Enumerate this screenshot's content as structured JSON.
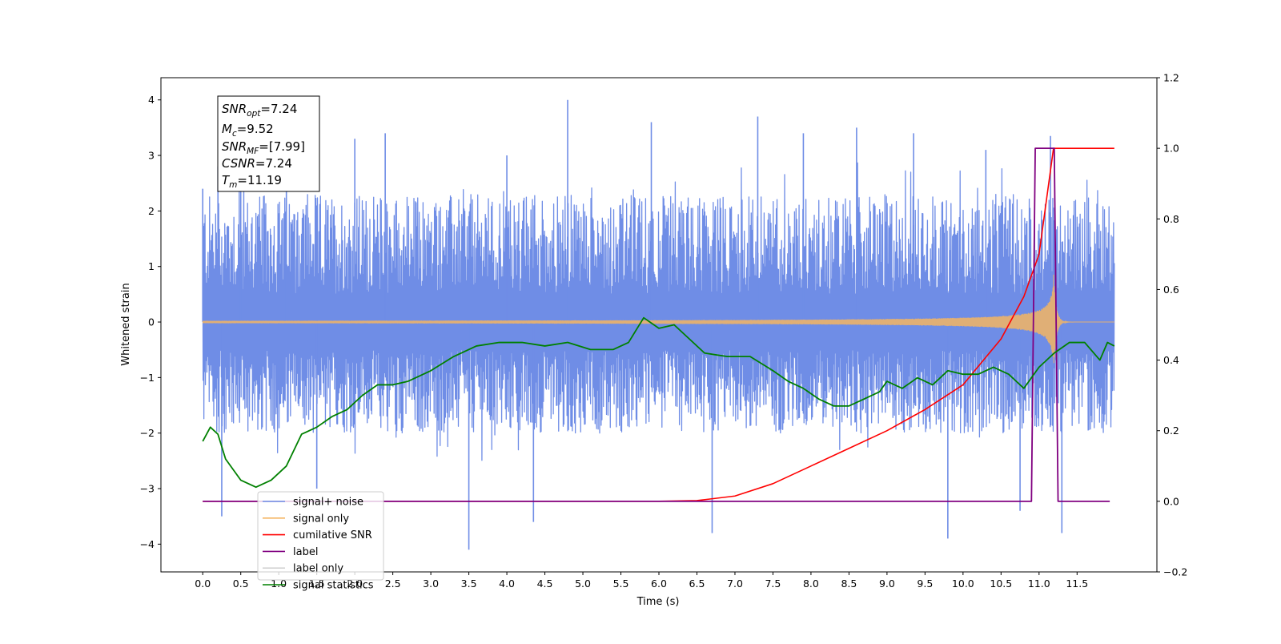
{
  "chart_data": {
    "type": "line",
    "xlabel": "Time (s)",
    "ylabel": "Whitened strain",
    "xlim": [
      -0.55,
      12.55
    ],
    "ylim_left": [
      -4.5,
      4.4
    ],
    "ylim_right": [
      -0.2,
      1.2
    ],
    "x_ticks": [
      "0.0",
      "0.5",
      "1.0",
      "1.5",
      "2.0",
      "2.5",
      "3.0",
      "3.5",
      "4.0",
      "4.5",
      "5.0",
      "5.5",
      "6.0",
      "6.5",
      "7.0",
      "7.5",
      "8.0",
      "8.5",
      "9.0",
      "9.5",
      "10.0",
      "10.5",
      "11.0",
      "11.5"
    ],
    "y_ticks_left": [
      "4",
      "3",
      "2",
      "1",
      "0",
      "−1",
      "−2",
      "−3",
      "−4"
    ],
    "y_ticks_right": [
      "1.2",
      "1.0",
      "0.8",
      "0.6",
      "0.4",
      "0.2",
      "0.0",
      "−0.2"
    ],
    "stats_box": [
      {
        "base": "SNR",
        "sub": "opt",
        "value": "=7.24"
      },
      {
        "base": "M",
        "sub": "c",
        "value": "=9.52"
      },
      {
        "base": "SNR",
        "sub": "MF",
        "value": "=[7.99]"
      },
      {
        "base": "CSNR",
        "sub": "",
        "value": "=7.24"
      },
      {
        "base": "T",
        "sub": "m",
        "value": "=11.19"
      }
    ],
    "legend": [
      {
        "label": "signal+ noise",
        "color": "#6f8de6"
      },
      {
        "label": "signal only",
        "color": "#f5b562"
      },
      {
        "label": "cumilative SNR",
        "color": "#ff0000"
      },
      {
        "label": "label",
        "color": "#800080"
      },
      {
        "label": "label only",
        "color": "#d3d3d3"
      },
      {
        "label": "signal statistics",
        "color": "#008000"
      }
    ],
    "series": [
      {
        "name": "signal+ noise",
        "axis": "left",
        "style": "dense noise band",
        "x_range": [
          0.0,
          11.99
        ],
        "typical_range": [
          -2.0,
          2.3
        ],
        "spike_x": [
          0.0,
          0.2,
          0.25,
          0.5,
          1.1,
          1.5,
          2.0,
          2.4,
          3.5,
          4.0,
          4.35,
          4.8,
          5.9,
          6.7,
          7.3,
          7.9,
          8.6,
          9.35,
          9.8,
          10.3,
          10.75,
          11.15,
          11.3
        ],
        "spike_val": [
          2.4,
          2.8,
          -3.5,
          2.9,
          3.1,
          -3.0,
          3.3,
          3.4,
          -4.1,
          3.0,
          -3.6,
          4.0,
          3.6,
          -3.8,
          3.7,
          3.4,
          3.5,
          3.4,
          -3.9,
          3.1,
          -3.4,
          3.35,
          -3.8
        ]
      },
      {
        "name": "signal only",
        "axis": "left",
        "style": "chirp",
        "x_range": [
          0.0,
          11.99
        ],
        "merger_time": 11.19,
        "peak_amplitude": 0.95
      },
      {
        "name": "cumilative SNR",
        "axis": "right",
        "x": [
          0.0,
          6.0,
          6.5,
          7.0,
          7.5,
          8.0,
          8.5,
          9.0,
          9.5,
          10.0,
          10.5,
          10.8,
          11.0,
          11.19,
          11.2,
          11.99
        ],
        "values": [
          0.0,
          0.0,
          0.002,
          0.015,
          0.05,
          0.1,
          0.15,
          0.2,
          0.26,
          0.33,
          0.46,
          0.58,
          0.7,
          1.0,
          1.0,
          1.0
        ]
      },
      {
        "name": "label",
        "axis": "right",
        "x": [
          0.0,
          10.9,
          10.95,
          11.2,
          11.25,
          11.93
        ],
        "values": [
          0.0,
          0.0,
          1.0,
          1.0,
          0.0,
          0.0
        ]
      },
      {
        "name": "signal statistics",
        "axis": "right",
        "x": [
          0.0,
          0.1,
          0.2,
          0.3,
          0.5,
          0.7,
          0.9,
          1.1,
          1.3,
          1.5,
          1.7,
          1.9,
          2.1,
          2.3,
          2.5,
          2.7,
          3.0,
          3.3,
          3.6,
          3.9,
          4.2,
          4.5,
          4.8,
          5.1,
          5.4,
          5.6,
          5.8,
          6.0,
          6.2,
          6.4,
          6.6,
          6.9,
          7.2,
          7.5,
          7.7,
          7.9,
          8.1,
          8.3,
          8.5,
          8.7,
          8.9,
          9.0,
          9.2,
          9.4,
          9.6,
          9.8,
          10.0,
          10.2,
          10.4,
          10.6,
          10.8,
          11.0,
          11.2,
          11.4,
          11.6,
          11.8,
          11.9,
          11.99
        ],
        "values": [
          0.17,
          0.21,
          0.19,
          0.12,
          0.06,
          0.04,
          0.06,
          0.1,
          0.19,
          0.21,
          0.24,
          0.26,
          0.3,
          0.33,
          0.33,
          0.34,
          0.37,
          0.41,
          0.44,
          0.45,
          0.45,
          0.44,
          0.45,
          0.43,
          0.43,
          0.45,
          0.52,
          0.49,
          0.5,
          0.46,
          0.42,
          0.41,
          0.41,
          0.37,
          0.34,
          0.32,
          0.29,
          0.27,
          0.27,
          0.29,
          0.31,
          0.34,
          0.32,
          0.35,
          0.33,
          0.37,
          0.36,
          0.36,
          0.38,
          0.36,
          0.32,
          0.38,
          0.42,
          0.45,
          0.45,
          0.4,
          0.45,
          0.44
        ]
      }
    ]
  }
}
